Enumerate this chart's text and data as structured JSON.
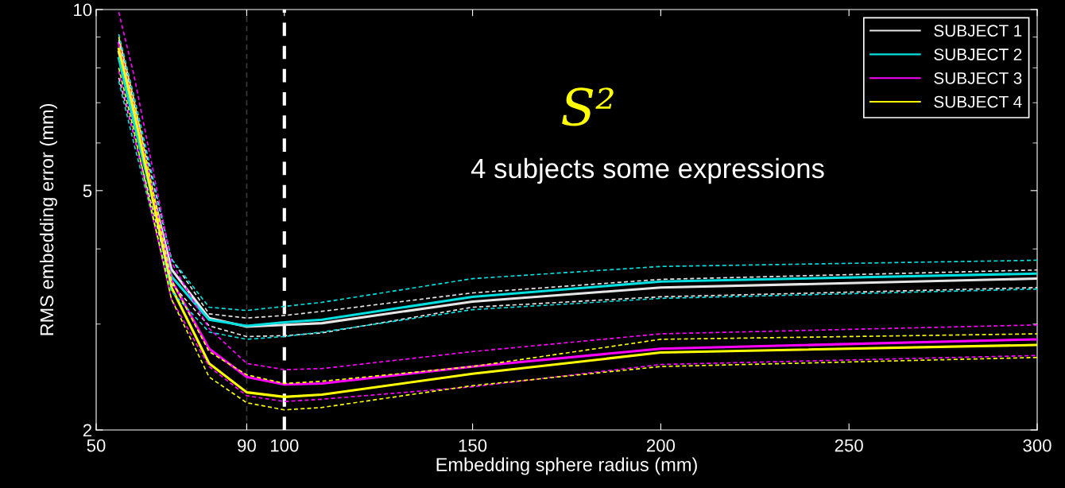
{
  "chart_data": {
    "type": "line",
    "xlabel": "Embedding sphere radius (mm)",
    "ylabel": "RMS embedding error (mm)",
    "log": "y",
    "xlim": [
      50,
      300
    ],
    "xticks": [
      50,
      90,
      100,
      150,
      200,
      250,
      300
    ],
    "ylim": [
      2,
      10
    ],
    "yticks": [
      2,
      5,
      10
    ],
    "grid": false,
    "legend": "top right",
    "line_style": "solid",
    "marker": "none",
    "x": [
      56,
      60,
      70,
      80,
      90,
      100,
      110,
      150,
      200,
      300
    ],
    "series": [
      {
        "color": "#e6e6e6",
        "line_style": "dashed",
        "values": [
          7.7,
          6.2,
          3.5,
          2.98,
          2.86,
          2.87,
          2.9,
          3.2,
          3.33,
          3.45
        ]
      },
      {
        "color": "#e6e6e6",
        "line_style": "dashed",
        "values": [
          8.9,
          7.0,
          3.85,
          3.12,
          3.07,
          3.1,
          3.15,
          3.38,
          3.56,
          3.69
        ]
      },
      {
        "color": "#00e0e0",
        "line_style": "dashed",
        "values": [
          7.6,
          6.0,
          3.4,
          2.91,
          2.83,
          2.86,
          2.91,
          3.17,
          3.31,
          3.43
        ]
      },
      {
        "color": "#00e0e0",
        "line_style": "dashed",
        "values": [
          9.1,
          7.2,
          3.85,
          3.2,
          3.16,
          3.21,
          3.26,
          3.57,
          3.74,
          3.83
        ]
      },
      {
        "color": "#ff00ff",
        "line_style": "dashed",
        "values": [
          7.9,
          6.2,
          3.3,
          2.55,
          2.28,
          2.23,
          2.25,
          2.36,
          2.57,
          2.66
        ]
      },
      {
        "color": "#ff00ff",
        "line_style": "dashed",
        "values": [
          9.9,
          7.8,
          3.8,
          2.95,
          2.58,
          2.52,
          2.53,
          2.7,
          2.89,
          2.99
        ]
      },
      {
        "color": "#ffff00",
        "line_style": "dashed",
        "values": [
          8.0,
          6.3,
          3.3,
          2.45,
          2.22,
          2.16,
          2.18,
          2.37,
          2.55,
          2.64
        ]
      },
      {
        "color": "#ffff00",
        "line_style": "dashed",
        "values": [
          9.0,
          7.1,
          3.55,
          2.7,
          2.47,
          2.39,
          2.41,
          2.55,
          2.83,
          2.89
        ]
      },
      {
        "name": "SUBJECT 1",
        "color": "#e6e6e6",
        "values": [
          8.5,
          6.7,
          3.7,
          3.07,
          2.97,
          2.99,
          3.01,
          3.27,
          3.45,
          3.57
        ]
      },
      {
        "name": "SUBJECT 2",
        "color": "#00e0e0",
        "values": [
          8.3,
          6.5,
          3.6,
          3.05,
          2.98,
          3.02,
          3.05,
          3.33,
          3.53,
          3.64
        ]
      },
      {
        "name": "SUBJECT 3",
        "color": "#ff00ff",
        "values": [
          8.8,
          6.9,
          3.55,
          2.73,
          2.45,
          2.38,
          2.39,
          2.55,
          2.73,
          2.83
        ]
      },
      {
        "name": "SUBJECT 4",
        "color": "#ffff00",
        "values": [
          8.6,
          6.8,
          3.45,
          2.58,
          2.31,
          2.27,
          2.29,
          2.48,
          2.69,
          2.77
        ]
      }
    ],
    "ref_lines": [
      {
        "axis": "x",
        "value": 90,
        "color": "#3a3a3a",
        "line_style": "dashed"
      },
      {
        "axis": "x",
        "value": 100,
        "color": "#ffffff",
        "line_style": "dashed"
      }
    ],
    "annotations": [
      "S²",
      "4 subjects some expressions"
    ]
  }
}
